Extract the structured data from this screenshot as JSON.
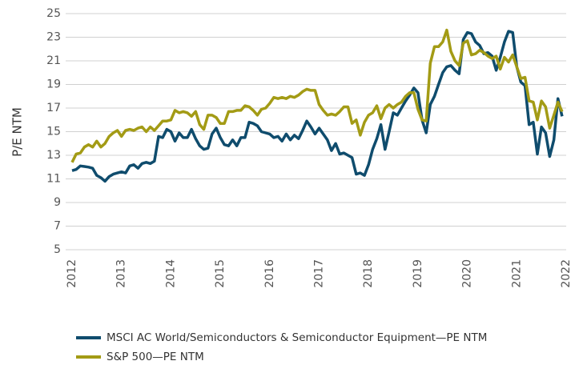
{
  "chart_data": {
    "type": "line",
    "ylabel": "P/E NTM",
    "categories": [
      "2012",
      null,
      null,
      null,
      null,
      null,
      null,
      null,
      null,
      null,
      null,
      null,
      "2013",
      null,
      null,
      null,
      null,
      null,
      null,
      null,
      null,
      null,
      null,
      null,
      "2014",
      null,
      null,
      null,
      null,
      null,
      null,
      null,
      null,
      null,
      null,
      null,
      "2015",
      null,
      null,
      null,
      null,
      null,
      null,
      null,
      null,
      null,
      null,
      null,
      "2016",
      null,
      null,
      null,
      null,
      null,
      null,
      null,
      null,
      null,
      null,
      null,
      "2017",
      null,
      null,
      null,
      null,
      null,
      null,
      null,
      null,
      null,
      null,
      null,
      "2018",
      null,
      null,
      null,
      null,
      null,
      null,
      null,
      null,
      null,
      null,
      null,
      "2019",
      null,
      null,
      null,
      null,
      null,
      null,
      null,
      null,
      null,
      null,
      null,
      "2020",
      null,
      null,
      null,
      null,
      null,
      null,
      null,
      null,
      null,
      null,
      null,
      "2021",
      null,
      null,
      null,
      null,
      null,
      null,
      null,
      null,
      null,
      null,
      null,
      "2022"
    ],
    "series": [
      {
        "name": "MSCI AC World/Semiconductors & Semiconductor Equipment—PE NTM",
        "color": "#0f4c6d",
        "values": [
          11.7,
          11.8,
          12.1,
          12.05,
          12.0,
          11.9,
          11.3,
          11.1,
          10.8,
          11.2,
          11.4,
          11.5,
          11.6,
          11.5,
          12.1,
          12.2,
          11.9,
          12.3,
          12.4,
          12.3,
          12.5,
          14.6,
          14.5,
          15.2,
          15.0,
          14.2,
          14.9,
          14.5,
          14.5,
          15.2,
          14.4,
          13.8,
          13.5,
          13.6,
          14.8,
          15.3,
          14.5,
          13.9,
          13.8,
          14.3,
          13.8,
          14.5,
          14.5,
          15.8,
          15.7,
          15.5,
          15.0,
          14.9,
          14.8,
          14.5,
          14.6,
          14.2,
          14.8,
          14.3,
          14.7,
          14.4,
          15.1,
          15.9,
          15.4,
          14.8,
          15.3,
          14.8,
          14.3,
          13.4,
          14.0,
          13.1,
          13.2,
          13.0,
          12.8,
          11.4,
          11.5,
          11.3,
          12.2,
          13.5,
          14.4,
          15.6,
          13.5,
          15.0,
          16.6,
          16.4,
          17.0,
          17.6,
          18.1,
          18.7,
          18.3,
          16.0,
          14.9,
          17.3,
          18.0,
          19.0,
          20.0,
          20.5,
          20.6,
          20.2,
          19.9,
          22.8,
          23.4,
          23.3,
          22.6,
          22.3,
          21.6,
          21.7,
          21.4,
          20.2,
          21.3,
          22.6,
          23.5,
          23.4,
          20.5,
          19.2,
          18.9,
          15.6,
          15.8,
          13.1,
          15.4,
          14.9,
          12.9,
          14.3,
          17.8,
          16.3,
          null
        ]
      },
      {
        "name": "S&P 500—PE NTM",
        "color": "#a39b15",
        "values": [
          12.4,
          13.1,
          13.2,
          13.7,
          13.9,
          13.7,
          14.2,
          13.7,
          14.0,
          14.6,
          14.9,
          15.1,
          14.6,
          15.1,
          15.2,
          15.1,
          15.3,
          15.4,
          15.0,
          15.4,
          15.1,
          15.5,
          15.9,
          15.9,
          16.0,
          16.8,
          16.6,
          16.7,
          16.6,
          16.3,
          16.7,
          15.6,
          15.2,
          16.4,
          16.4,
          16.2,
          15.7,
          15.7,
          16.7,
          16.7,
          16.8,
          16.8,
          17.2,
          17.1,
          16.8,
          16.4,
          16.9,
          17.0,
          17.4,
          17.9,
          17.8,
          17.9,
          17.8,
          18.0,
          17.9,
          18.1,
          18.4,
          18.6,
          18.5,
          18.5,
          17.3,
          16.8,
          16.4,
          16.5,
          16.4,
          16.7,
          17.1,
          17.1,
          15.7,
          16.0,
          14.7,
          15.8,
          16.4,
          16.6,
          17.2,
          16.1,
          17.0,
          17.3,
          17.0,
          17.3,
          17.5,
          18.0,
          18.3,
          18.3,
          16.9,
          16.0,
          15.9,
          20.8,
          22.2,
          22.2,
          22.6,
          23.6,
          21.8,
          21.0,
          20.6,
          22.5,
          22.7,
          21.5,
          21.6,
          21.9,
          21.7,
          21.4,
          21.2,
          21.4,
          20.3,
          21.3,
          20.9,
          21.5,
          20.5,
          19.5,
          19.6,
          17.6,
          17.5,
          16.0,
          17.6,
          17.1,
          15.3,
          16.4,
          17.5,
          16.7,
          null
        ]
      }
    ],
    "ylim": [
      5,
      25
    ],
    "yticks": [
      5,
      7,
      9,
      11,
      13,
      15,
      17,
      19,
      21,
      23,
      25
    ],
    "grid": true,
    "legend": "bottom"
  }
}
